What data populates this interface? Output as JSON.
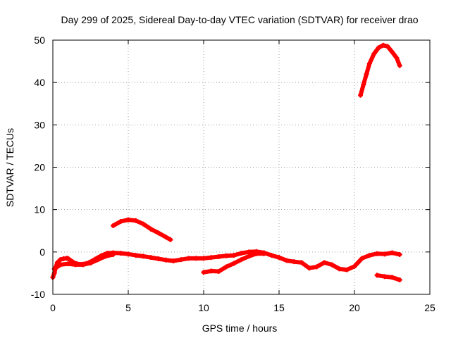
{
  "chart_data": {
    "type": "scatter",
    "title": "Day 299 of 2025, Sidereal Day-to-day VTEC variation (SDTVAR) for receiver drao",
    "xlabel": "GPS time / hours",
    "ylabel": "SDTVAR / TECUs",
    "xlim": [
      0,
      25
    ],
    "ylim": [
      -10,
      50
    ],
    "xticks": [
      0,
      5,
      10,
      15,
      20,
      25
    ],
    "yticks": [
      -10,
      0,
      10,
      20,
      30,
      40,
      50
    ],
    "grid": true,
    "legend": "none",
    "color": "#ff0000",
    "series": [
      {
        "name": "sdtvar-main-band",
        "x": [
          0.0,
          0.1,
          0.2,
          0.3,
          0.5,
          0.7,
          0.9,
          1.0,
          1.3,
          1.6,
          2.0,
          2.4,
          2.8,
          3.2,
          3.6,
          4.0,
          4.5,
          5.0,
          5.5,
          6.0,
          6.5,
          7.0,
          7.5,
          8.0,
          8.5,
          9.0,
          9.5,
          10.0,
          10.5,
          11.0,
          11.5,
          12.0,
          12.5,
          13.0,
          13.5,
          14.0,
          14.5,
          15.0,
          15.5,
          16.0,
          16.5,
          17.0,
          17.5,
          18.0,
          18.5,
          19.0,
          19.5,
          20.0,
          20.5,
          21.0,
          21.5,
          22.0,
          22.5,
          23.0
        ],
        "y": [
          -6.0,
          -5.0,
          -3.5,
          -2.5,
          -1.8,
          -1.6,
          -1.5,
          -1.5,
          -2.3,
          -2.8,
          -2.9,
          -2.5,
          -1.7,
          -0.9,
          -0.3,
          -0.2,
          -0.3,
          -0.5,
          -0.8,
          -1.0,
          -1.3,
          -1.6,
          -1.9,
          -2.1,
          -1.8,
          -1.5,
          -1.5,
          -1.5,
          -1.3,
          -1.1,
          -0.9,
          -0.8,
          -0.3,
          0.0,
          0.1,
          -0.2,
          -0.8,
          -1.3,
          -2.0,
          -2.3,
          -2.5,
          -3.8,
          -3.5,
          -2.5,
          -3.0,
          -4.0,
          -4.2,
          -3.4,
          -1.5,
          -0.8,
          -0.4,
          -0.5,
          -0.2,
          -0.6
        ]
      },
      {
        "name": "sdtvar-lower-band",
        "x": [
          0.1,
          0.5,
          1.0,
          1.5,
          2.0,
          2.5,
          3.0,
          3.5,
          4.0
        ],
        "y": [
          -4.0,
          -3.0,
          -2.8,
          -3.0,
          -3.0,
          -2.6,
          -1.8,
          -1.0,
          -0.6
        ]
      },
      {
        "name": "sdtvar-evening-segment",
        "x": [
          10.0,
          10.5,
          11.0,
          11.5,
          12.0,
          12.5,
          13.0,
          13.5,
          14.0
        ],
        "y": [
          -4.8,
          -4.5,
          -4.6,
          -3.5,
          -2.7,
          -1.8,
          -1.0,
          -0.4,
          -0.4
        ]
      },
      {
        "name": "sdtvar-early-arc",
        "x": [
          4.0,
          4.5,
          5.0,
          5.5,
          6.0,
          6.5,
          7.0,
          7.5,
          7.8
        ],
        "y": [
          6.2,
          7.2,
          7.6,
          7.4,
          6.6,
          5.4,
          4.5,
          3.5,
          2.9
        ]
      },
      {
        "name": "sdtvar-late-arc",
        "x": [
          20.4,
          20.6,
          20.8,
          21.0,
          21.3,
          21.6,
          21.9,
          22.2,
          22.5,
          22.8,
          23.0
        ],
        "y": [
          37.0,
          39.5,
          42.0,
          44.5,
          46.8,
          48.2,
          48.8,
          48.5,
          47.2,
          45.8,
          44.0
        ]
      },
      {
        "name": "sdtvar-late-negative-segment",
        "x": [
          21.5,
          22.0,
          22.5,
          23.0
        ],
        "y": [
          -5.5,
          -5.8,
          -6.0,
          -6.6
        ]
      }
    ]
  }
}
